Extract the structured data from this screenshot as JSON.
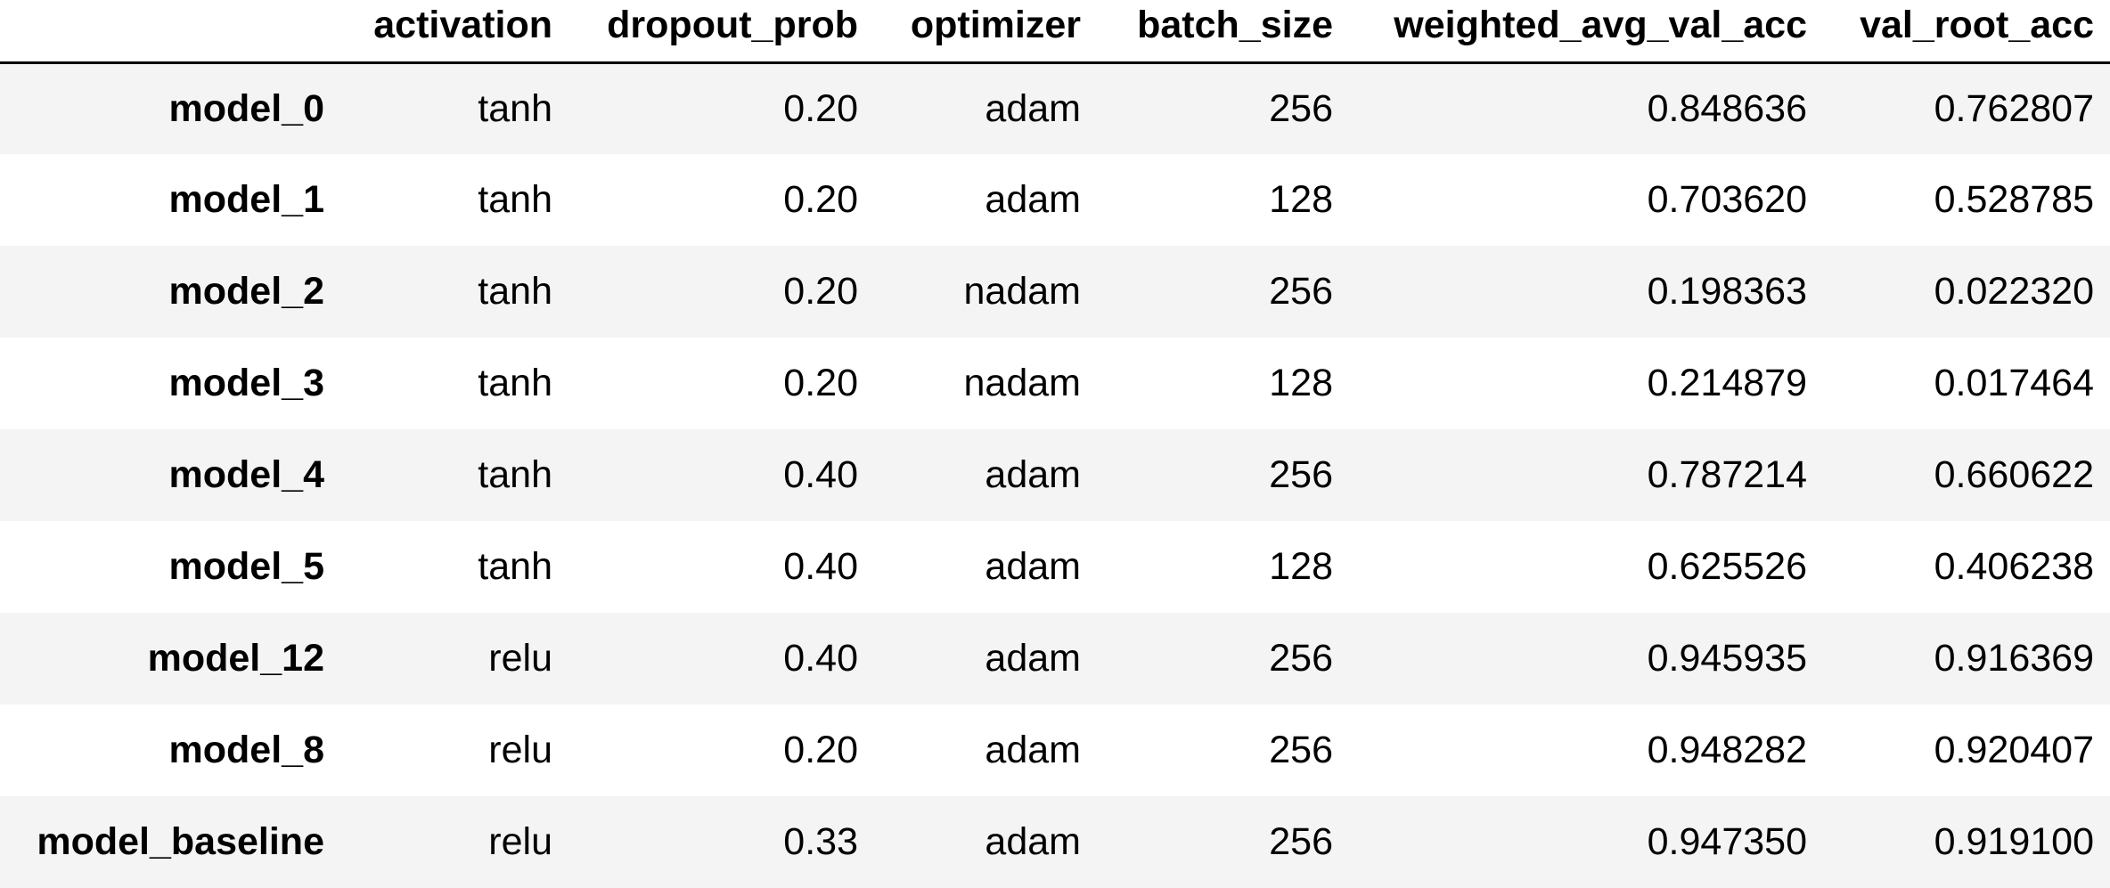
{
  "table": {
    "columns": [
      "",
      "activation",
      "dropout_prob",
      "optimizer",
      "batch_size",
      "weighted_avg_val_acc",
      "val_root_acc"
    ],
    "rows": [
      {
        "index": "model_0",
        "activation": "tanh",
        "dropout_prob": "0.20",
        "optimizer": "adam",
        "batch_size": "256",
        "weighted_avg_val_acc": "0.848636",
        "val_root_acc": "0.762807"
      },
      {
        "index": "model_1",
        "activation": "tanh",
        "dropout_prob": "0.20",
        "optimizer": "adam",
        "batch_size": "128",
        "weighted_avg_val_acc": "0.703620",
        "val_root_acc": "0.528785"
      },
      {
        "index": "model_2",
        "activation": "tanh",
        "dropout_prob": "0.20",
        "optimizer": "nadam",
        "batch_size": "256",
        "weighted_avg_val_acc": "0.198363",
        "val_root_acc": "0.022320"
      },
      {
        "index": "model_3",
        "activation": "tanh",
        "dropout_prob": "0.20",
        "optimizer": "nadam",
        "batch_size": "128",
        "weighted_avg_val_acc": "0.214879",
        "val_root_acc": "0.017464"
      },
      {
        "index": "model_4",
        "activation": "tanh",
        "dropout_prob": "0.40",
        "optimizer": "adam",
        "batch_size": "256",
        "weighted_avg_val_acc": "0.787214",
        "val_root_acc": "0.660622"
      },
      {
        "index": "model_5",
        "activation": "tanh",
        "dropout_prob": "0.40",
        "optimizer": "adam",
        "batch_size": "128",
        "weighted_avg_val_acc": "0.625526",
        "val_root_acc": "0.406238"
      },
      {
        "index": "model_12",
        "activation": "relu",
        "dropout_prob": "0.40",
        "optimizer": "adam",
        "batch_size": "256",
        "weighted_avg_val_acc": "0.945935",
        "val_root_acc": "0.916369"
      },
      {
        "index": "model_8",
        "activation": "relu",
        "dropout_prob": "0.20",
        "optimizer": "adam",
        "batch_size": "256",
        "weighted_avg_val_acc": "0.948282",
        "val_root_acc": "0.920407"
      },
      {
        "index": "model_baseline",
        "activation": "relu",
        "dropout_prob": "0.33",
        "optimizer": "adam",
        "batch_size": "256",
        "weighted_avg_val_acc": "0.947350",
        "val_root_acc": "0.919100"
      }
    ]
  }
}
